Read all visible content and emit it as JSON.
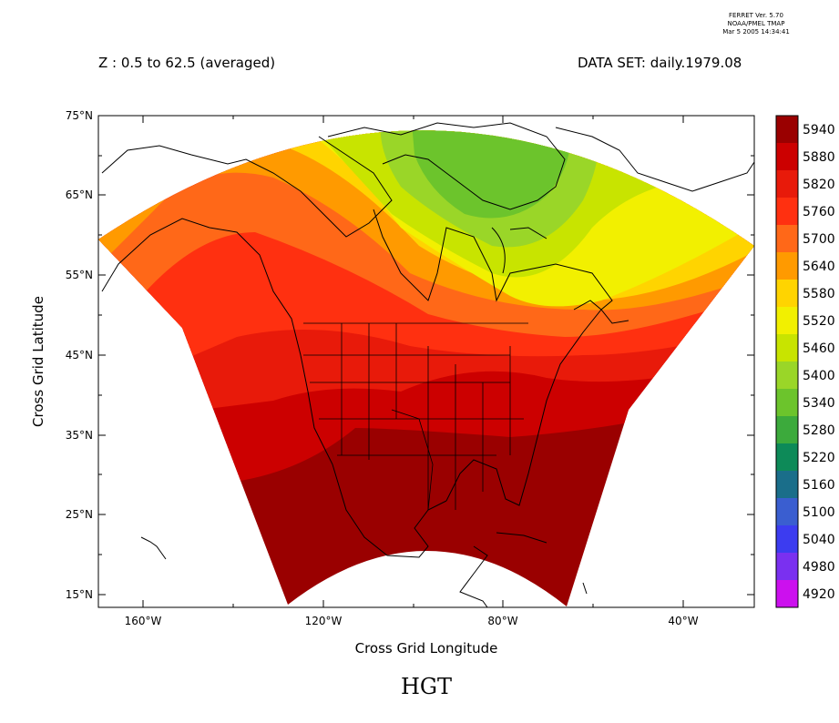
{
  "header": {
    "ferret_lines": [
      "FERRET Ver. 5.70",
      "NOAA/PMEL TMAP",
      "Mar  5 2005 14:34:41"
    ],
    "z_label": "Z : 0.5 to 62.5 (averaged)",
    "dataset_label": "DATA SET: daily.1979.08"
  },
  "axes": {
    "ylabel": "Cross Grid Latitude",
    "xlabel": "Cross Grid Longitude",
    "y_ticks": [
      "75°N",
      "65°N",
      "55°N",
      "45°N",
      "35°N",
      "25°N",
      "15°N"
    ],
    "x_ticks": [
      "160°W",
      "120°W",
      "80°W",
      "40°W"
    ]
  },
  "title": "HGT",
  "colorbar": {
    "levels": [
      "5940",
      "5880",
      "5820",
      "5760",
      "5700",
      "5640",
      "5580",
      "5520",
      "5460",
      "5400",
      "5340",
      "5280",
      "5220",
      "5160",
      "5100",
      "5040",
      "4980",
      "4920"
    ],
    "colors": [
      "#9a0000",
      "#cc0000",
      "#e81a0a",
      "#ff3010",
      "#ff6818",
      "#ff9a00",
      "#ffd400",
      "#f2f000",
      "#c8e400",
      "#9ad628",
      "#6cc42c",
      "#3caa3c",
      "#0d8a58",
      "#1a6e8a",
      "#3a5ed0",
      "#3c3cf0",
      "#7a30f0",
      "#cc10ee"
    ]
  },
  "chart_data": {
    "type": "heatmap",
    "variable": "HGT",
    "zlim": [
      4920,
      5940
    ],
    "level_step": 60
  }
}
